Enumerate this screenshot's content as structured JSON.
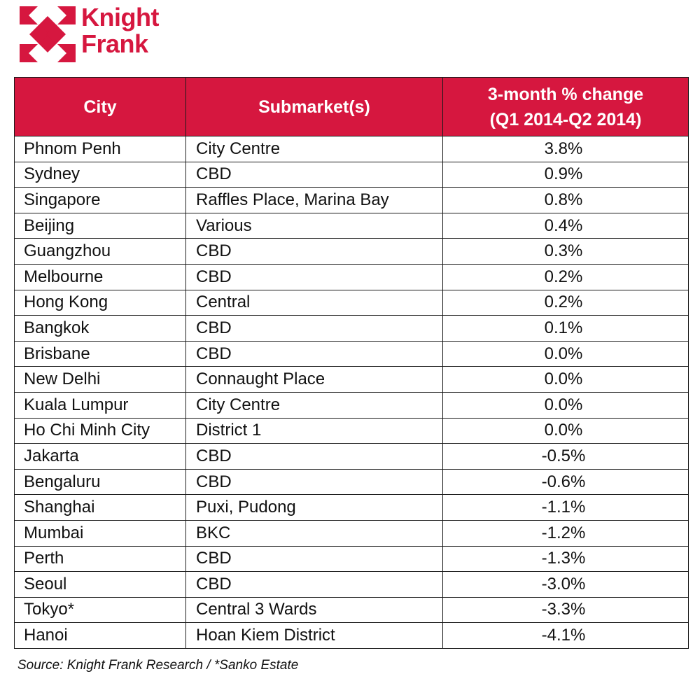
{
  "brand": {
    "logo_lines": [
      "Knight",
      "Frank"
    ],
    "color": "#d6173f"
  },
  "table": {
    "headers": {
      "city": "City",
      "submarket": "Submarket(s)",
      "change_line1": "3-month % change",
      "change_line2": "(Q1 2014-Q2 2014)"
    },
    "header_bg": "#d6173f",
    "rows": [
      {
        "city": "Phnom Penh",
        "submarket": "City Centre",
        "change": "3.8%"
      },
      {
        "city": "Sydney",
        "submarket": "CBD",
        "change": "0.9%"
      },
      {
        "city": "Singapore",
        "submarket": "Raffles Place, Marina Bay",
        "change": "0.8%"
      },
      {
        "city": "Beijing",
        "submarket": "Various",
        "change": "0.4%"
      },
      {
        "city": "Guangzhou",
        "submarket": "CBD",
        "change": "0.3%"
      },
      {
        "city": "Melbourne",
        "submarket": "CBD",
        "change": "0.2%"
      },
      {
        "city": "Hong Kong",
        "submarket": "Central",
        "change": "0.2%"
      },
      {
        "city": "Bangkok",
        "submarket": "CBD",
        "change": "0.1%"
      },
      {
        "city": "Brisbane",
        "submarket": "CBD",
        "change": "0.0%"
      },
      {
        "city": "New Delhi",
        "submarket": "Connaught Place",
        "change": "0.0%"
      },
      {
        "city": "Kuala Lumpur",
        "submarket": "City Centre",
        "change": "0.0%"
      },
      {
        "city": "Ho Chi Minh City",
        "submarket": "District 1",
        "change": "0.0%"
      },
      {
        "city": "Jakarta",
        "submarket": "CBD",
        "change": "-0.5%"
      },
      {
        "city": "Bengaluru",
        "submarket": "CBD",
        "change": "-0.6%"
      },
      {
        "city": "Shanghai",
        "submarket": "Puxi, Pudong",
        "change": "-1.1%"
      },
      {
        "city": "Mumbai",
        "submarket": "BKC",
        "change": "-1.2%"
      },
      {
        "city": "Perth",
        "submarket": "CBD",
        "change": "-1.3%"
      },
      {
        "city": "Seoul",
        "submarket": "CBD",
        "change": "-3.0%"
      },
      {
        "city": "Tokyo*",
        "submarket": "Central 3 Wards",
        "change": "-3.3%"
      },
      {
        "city": "Hanoi",
        "submarket": "Hoan Kiem District",
        "change": "-4.1%"
      }
    ]
  },
  "source": "Source: Knight Frank Research / *Sanko Estate"
}
